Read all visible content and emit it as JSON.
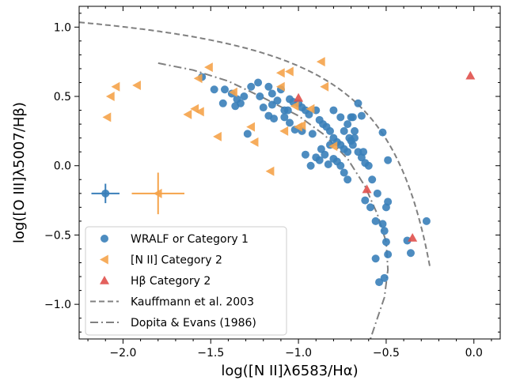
{
  "chart_data": {
    "type": "scatter",
    "title": "",
    "xlabel": "log([N II]λ6583/Hα)",
    "ylabel": "log([O III]λ5007/Hβ)",
    "xlim": [
      -2.25,
      0.15
    ],
    "ylim": [
      -1.25,
      1.15
    ],
    "xticks": [
      -2.0,
      -1.5,
      -1.0,
      -0.5,
      0.0
    ],
    "xtick_labels": [
      "−2.0",
      "−1.5",
      "−1.0",
      "−0.5",
      "0.0"
    ],
    "yticks": [
      -1.0,
      -0.5,
      0.0,
      0.5,
      1.0
    ],
    "ytick_labels": [
      "−1.0",
      "−0.5",
      "0.0",
      "0.5",
      "1.0"
    ],
    "grid": false,
    "legend_position": "lower-left",
    "series": [
      {
        "name": "WRALF or Category 1",
        "marker": "circle",
        "color": "#3a7fb9",
        "points": [
          [
            -1.55,
            0.64
          ],
          [
            -1.48,
            0.55
          ],
          [
            -1.42,
            0.55
          ],
          [
            -1.43,
            0.45
          ],
          [
            -1.38,
            0.52
          ],
          [
            -1.35,
            0.48
          ],
          [
            -1.33,
            0.45
          ],
          [
            -1.31,
            0.5
          ],
          [
            -1.36,
            0.43
          ],
          [
            -1.27,
            0.57
          ],
          [
            -1.23,
            0.6
          ],
          [
            -1.22,
            0.5
          ],
          [
            -1.2,
            0.42
          ],
          [
            -1.17,
            0.57
          ],
          [
            -1.15,
            0.52
          ],
          [
            -1.17,
            0.36
          ],
          [
            -1.15,
            0.44
          ],
          [
            -1.12,
            0.47
          ],
          [
            -1.1,
            0.55
          ],
          [
            -1.08,
            0.4
          ],
          [
            -1.06,
            0.4
          ],
          [
            -1.05,
            0.48
          ],
          [
            -1.03,
            0.46
          ],
          [
            -1.0,
            0.45
          ],
          [
            -0.98,
            0.42
          ],
          [
            -0.96,
            0.4
          ],
          [
            -0.94,
            0.37
          ],
          [
            -1.05,
            0.31
          ],
          [
            -1.02,
            0.26
          ],
          [
            -0.98,
            0.25
          ],
          [
            -0.9,
            0.4
          ],
          [
            -0.88,
            0.33
          ],
          [
            -0.86,
            0.3
          ],
          [
            -0.84,
            0.28
          ],
          [
            -0.82,
            0.25
          ],
          [
            -0.8,
            0.2
          ],
          [
            -0.78,
            0.17
          ],
          [
            -0.76,
            0.15
          ],
          [
            -0.74,
            0.12
          ],
          [
            -0.72,
            0.1
          ],
          [
            -0.7,
            0.18
          ],
          [
            -0.68,
            0.2
          ],
          [
            -0.66,
            0.1
          ],
          [
            -0.64,
            0.06
          ],
          [
            -0.62,
            0.02
          ],
          [
            -0.6,
            0.0
          ],
          [
            -0.72,
            0.3
          ],
          [
            -0.7,
            0.35
          ],
          [
            -0.68,
            0.25
          ],
          [
            -0.66,
            0.45
          ],
          [
            -0.64,
            0.36
          ],
          [
            -0.82,
            0.15
          ],
          [
            -0.8,
            0.05
          ],
          [
            -0.78,
            0.03
          ],
          [
            -0.76,
            0.0
          ],
          [
            -0.74,
            -0.05
          ],
          [
            -0.72,
            -0.1
          ],
          [
            -0.85,
            0.08
          ],
          [
            -0.88,
            0.04
          ],
          [
            -0.8,
            0.4
          ],
          [
            -0.76,
            0.35
          ],
          [
            -0.74,
            0.25
          ],
          [
            -0.71,
            0.2
          ],
          [
            -0.69,
            0.15
          ],
          [
            -0.63,
            0.1
          ],
          [
            -0.62,
            -0.25
          ],
          [
            -0.59,
            -0.3
          ],
          [
            -0.58,
            -0.1
          ],
          [
            -0.55,
            -0.2
          ],
          [
            -0.56,
            -0.4
          ],
          [
            -0.52,
            -0.42
          ],
          [
            -0.51,
            -0.47
          ],
          [
            -0.5,
            -0.3
          ],
          [
            -0.49,
            -0.26
          ],
          [
            -0.5,
            -0.55
          ],
          [
            -0.49,
            -0.64
          ],
          [
            -0.51,
            -0.81
          ],
          [
            -0.54,
            -0.84
          ],
          [
            -0.56,
            -0.67
          ],
          [
            -0.52,
            0.24
          ],
          [
            -0.49,
            0.04
          ],
          [
            -0.27,
            -0.4
          ],
          [
            -0.38,
            -0.54
          ],
          [
            -0.36,
            -0.63
          ],
          [
            -0.69,
            0.35
          ],
          [
            -1.29,
            0.23
          ],
          [
            -0.92,
            0.23
          ],
          [
            -0.96,
            0.08
          ],
          [
            -0.9,
            0.06
          ],
          [
            -0.87,
            0.12
          ],
          [
            -0.83,
            0.01
          ],
          [
            -0.93,
            0.0
          ],
          [
            -1.14,
            0.34
          ],
          [
            -1.08,
            0.35
          ]
        ]
      },
      {
        "name": "[N II] Category 2",
        "marker": "triangle-left",
        "color": "#f5a34a",
        "points": [
          [
            -2.09,
            0.35
          ],
          [
            -2.07,
            0.5
          ],
          [
            -2.04,
            0.57
          ],
          [
            -1.92,
            0.58
          ],
          [
            -1.63,
            0.37
          ],
          [
            -1.59,
            0.41
          ],
          [
            -1.56,
            0.39
          ],
          [
            -1.57,
            0.63
          ],
          [
            -1.51,
            0.71
          ],
          [
            -1.46,
            0.21
          ],
          [
            -1.37,
            0.53
          ],
          [
            -1.27,
            0.28
          ],
          [
            -1.25,
            0.17
          ],
          [
            -1.16,
            -0.04
          ],
          [
            -1.1,
            0.57
          ],
          [
            -1.1,
            0.67
          ],
          [
            -1.05,
            0.68
          ],
          [
            -1.02,
            0.43
          ],
          [
            -1.0,
            0.28
          ],
          [
            -0.93,
            0.41
          ],
          [
            -0.87,
            0.75
          ],
          [
            -0.85,
            0.57
          ],
          [
            -0.8,
            0.14
          ],
          [
            -1.08,
            0.25
          ],
          [
            -0.98,
            0.29
          ]
        ]
      },
      {
        "name": "Hβ Category 2",
        "marker": "triangle-up",
        "color": "#e0504b",
        "points": [
          [
            -1.0,
            0.49
          ],
          [
            -0.61,
            -0.17
          ],
          [
            -0.35,
            -0.52
          ],
          [
            -0.02,
            0.65
          ]
        ]
      },
      {
        "name": "Kauffmann et al. 2003",
        "style": "dashed",
        "color": "#808080",
        "formula": "y = 0.61/(x-0.05)+1.3"
      },
      {
        "name": "Dopita & Evans (1986)",
        "style": "dash-dot",
        "color": "#808080",
        "points": [
          [
            -1.8,
            0.74
          ],
          [
            -1.6,
            0.69
          ],
          [
            -1.4,
            0.61
          ],
          [
            -1.2,
            0.49
          ],
          [
            -1.0,
            0.36
          ],
          [
            -0.85,
            0.22
          ],
          [
            -0.72,
            0.05
          ],
          [
            -0.62,
            -0.15
          ],
          [
            -0.55,
            -0.35
          ],
          [
            -0.5,
            -0.55
          ],
          [
            -0.49,
            -0.75
          ],
          [
            -0.51,
            -0.95
          ],
          [
            -0.55,
            -1.1
          ],
          [
            -0.59,
            -1.25
          ]
        ]
      }
    ],
    "error_bars": [
      {
        "x": -2.1,
        "y": -0.2,
        "xerr": 0.08,
        "yerr": 0.07,
        "color": "#3a7fb9"
      },
      {
        "x": -1.8,
        "y": -0.2,
        "xerr": 0.15,
        "yerr": 0.15,
        "color": "#f5a34a"
      }
    ]
  }
}
